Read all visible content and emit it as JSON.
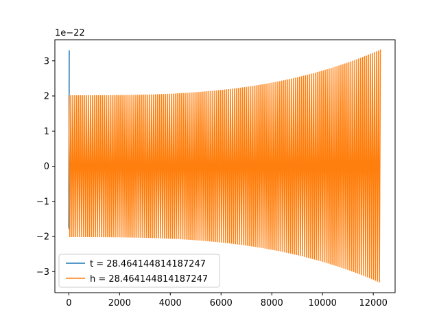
{
  "chart_data": {
    "type": "line",
    "title": "",
    "xlabel": "",
    "ylabel": "",
    "offset_label": "1e−22",
    "xlim": [
      -550,
      12860
    ],
    "ylim": [
      -3.6,
      3.6
    ],
    "x_ticks": [
      0,
      2000,
      4000,
      6000,
      8000,
      10000,
      12000
    ],
    "x_tick_labels": [
      "0",
      "2000",
      "4000",
      "6000",
      "8000",
      "10000",
      "12000"
    ],
    "y_ticks": [
      3,
      2,
      1,
      0,
      -1,
      -2,
      -3
    ],
    "y_tick_labels": [
      "3",
      "2",
      "1",
      "0",
      "−1",
      "−2",
      "−3"
    ],
    "grid": false,
    "legend_position": "lower-left",
    "series": [
      {
        "name": "t = 28.464144814187247",
        "color": "#1f77b4",
        "description_points": {
          "x": [
            0,
            0,
            0,
            0
          ],
          "y": [
            -1.75,
            3.3,
            -0.7,
            -1.8
          ]
        }
      },
      {
        "name": "h = 28.464144814187247",
        "color": "#ff7f0e",
        "x_start": 0,
        "x_end": 12280,
        "amplitude_start": 2.02,
        "amplitude_end": 3.32,
        "cycles": 158
      }
    ]
  }
}
